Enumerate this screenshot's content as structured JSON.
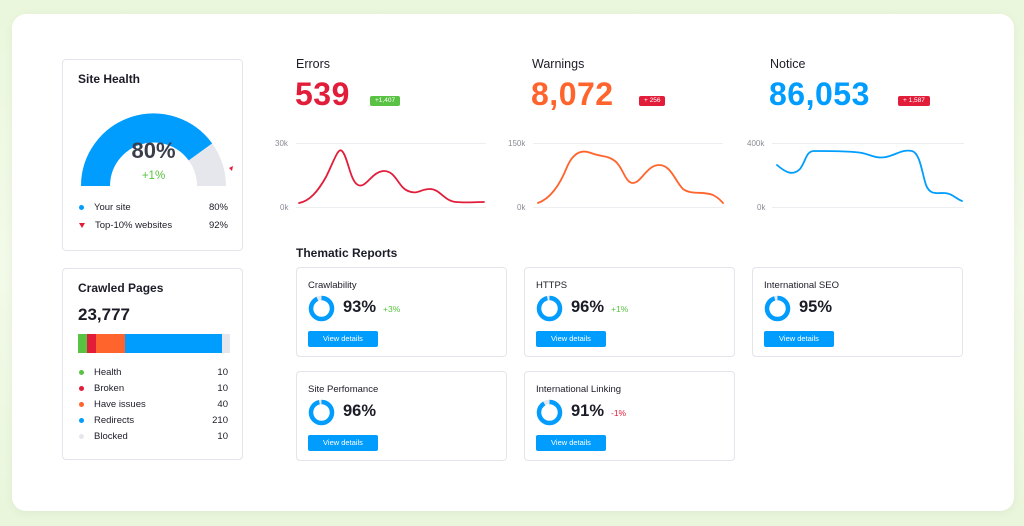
{
  "colors": {
    "blue": "#009dff",
    "red": "#e21d3a",
    "orange": "#ff642d",
    "green": "#59c242",
    "gray": "#e5e7ec"
  },
  "site_health": {
    "title": "Site Health",
    "score": "80%",
    "score_value": 80,
    "delta": "+1%",
    "legend": [
      {
        "label": "Your site",
        "value": "80%"
      },
      {
        "label": "Top-10% websites",
        "value": "92%"
      }
    ]
  },
  "crawled_pages": {
    "title": "Crawled Pages",
    "total": "23,777",
    "legend": [
      {
        "label": "Health",
        "value": "10"
      },
      {
        "label": "Broken",
        "value": "10"
      },
      {
        "label": "Have issues",
        "value": "40"
      },
      {
        "label": "Redirects",
        "value": "210"
      },
      {
        "label": "Blocked",
        "value": "10"
      }
    ]
  },
  "metrics": [
    {
      "label": "Errors",
      "value": "539",
      "badge": "+1,407",
      "badge_color": "#59c242",
      "value_color": "#e21d3a",
      "y_top": "30k",
      "y_bottom": "0k"
    },
    {
      "label": "Warnings",
      "value": "8,072",
      "badge": "+ 256",
      "badge_color": "#e21d3a",
      "value_color": "#ff642d",
      "y_top": "150k",
      "y_bottom": "0k"
    },
    {
      "label": "Notice",
      "value": "86,053",
      "badge": "+ 1,587",
      "badge_color": "#e21d3a",
      "value_color": "#009dff",
      "y_top": "400k",
      "y_bottom": "0k"
    }
  ],
  "thematic": {
    "title": "Thematic Reports",
    "button_label": "View details",
    "reports": [
      {
        "name": "Crawlability",
        "pct": "93%",
        "value": 93,
        "delta": "+3%",
        "delta_color": "#59c242"
      },
      {
        "name": "HTTPS",
        "pct": "96%",
        "value": 96,
        "delta": "+1%",
        "delta_color": "#59c242"
      },
      {
        "name": "International SEO",
        "pct": "95%",
        "value": 95,
        "delta": "",
        "delta_color": "#59c242"
      },
      {
        "name": "Site Perfomance",
        "pct": "96%",
        "value": 96,
        "delta": "",
        "delta_color": "#59c242"
      },
      {
        "name": "International Linking",
        "pct": "91%",
        "value": 91,
        "delta": "-1%",
        "delta_color": "#e21d3a"
      }
    ]
  }
}
